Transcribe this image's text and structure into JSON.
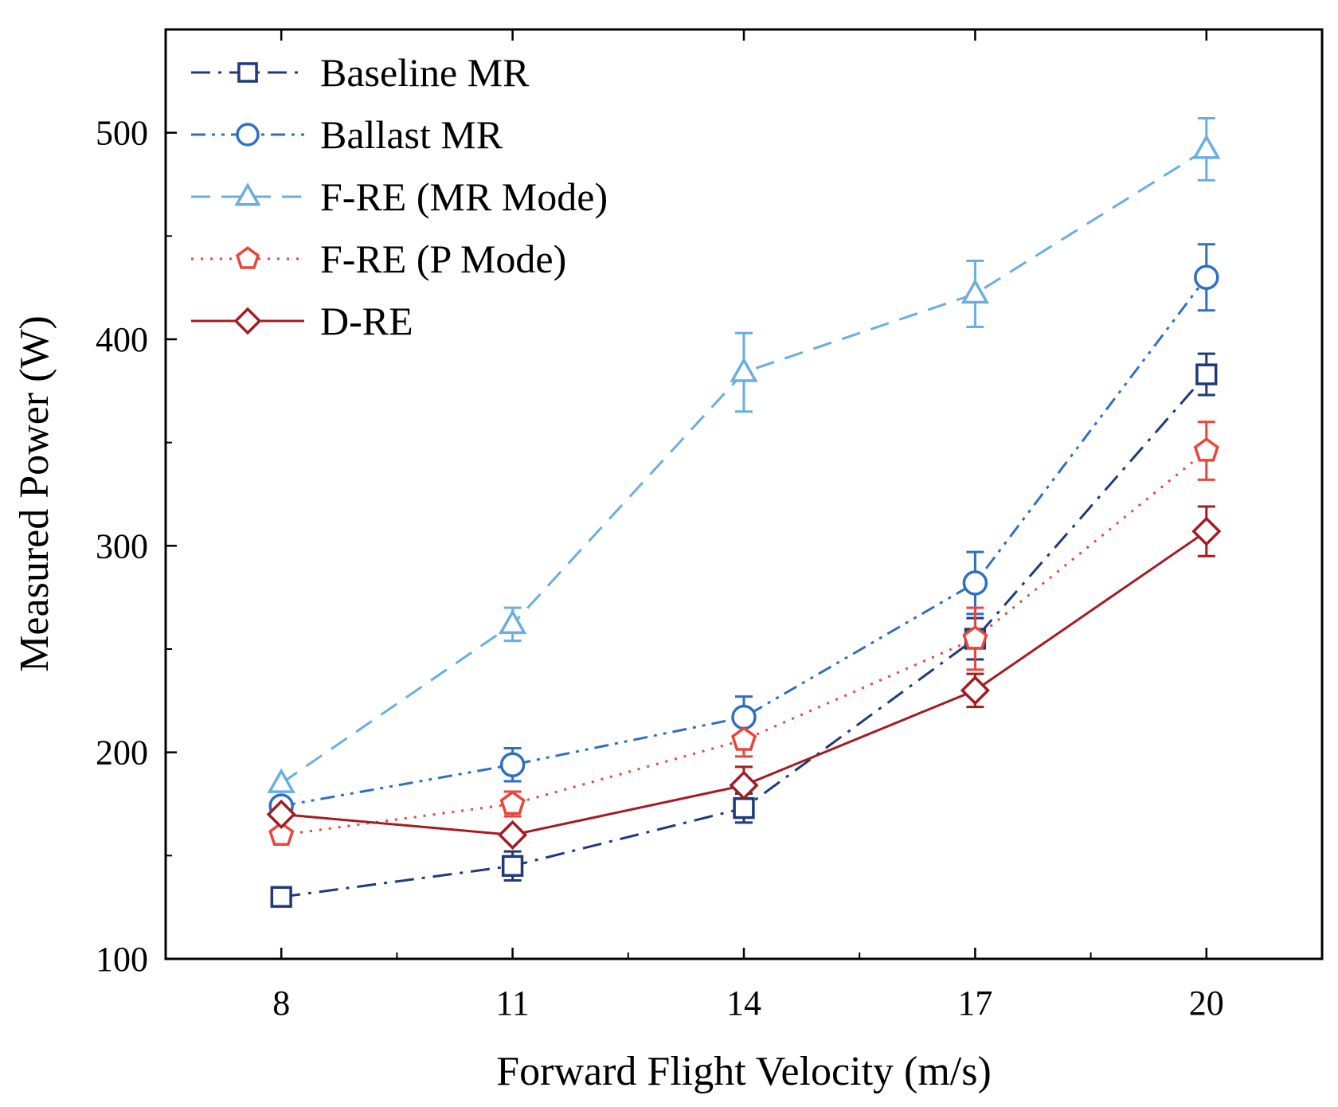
{
  "chart_data": {
    "type": "line",
    "title": "",
    "xlabel": "Forward Flight Velocity (m/s)",
    "ylabel": "Measured Power (W)",
    "x": [
      8,
      11,
      14,
      17,
      20
    ],
    "x_ticks": [
      "8",
      "11",
      "14",
      "17",
      "20"
    ],
    "y_ticks": [
      "100",
      "200",
      "300",
      "400",
      "500"
    ],
    "xlim": [
      6.5,
      21.5
    ],
    "ylim": [
      100,
      550
    ],
    "legend_position": "top-left",
    "series": [
      {
        "name": "Baseline MR",
        "marker": "square",
        "dash": "dashdot",
        "color": "#1f3a7a",
        "values": [
          130,
          145,
          173,
          255,
          383
        ],
        "errors": [
          0,
          7,
          7,
          10,
          10
        ]
      },
      {
        "name": "Ballast MR",
        "marker": "circle",
        "dash": "dashdotdot",
        "color": "#2f6fc0",
        "values": [
          174,
          194,
          217,
          282,
          430
        ],
        "errors": [
          0,
          8,
          10,
          15,
          16
        ]
      },
      {
        "name": "F-RE (MR Mode)",
        "marker": "triangle",
        "dash": "dashed",
        "color": "#6aaee0",
        "values": [
          185,
          262,
          384,
          422,
          492
        ],
        "errors": [
          0,
          8,
          19,
          16,
          15
        ]
      },
      {
        "name": "F-RE (P Mode)",
        "marker": "pentagon",
        "dash": "dotted",
        "color": "#e8463a",
        "values": [
          160,
          175,
          206,
          255,
          346
        ],
        "errors": [
          0,
          6,
          8,
          15,
          14
        ]
      },
      {
        "name": "D-RE",
        "marker": "diamond",
        "dash": "solid",
        "color": "#a31c23",
        "values": [
          170,
          160,
          184,
          230,
          307
        ],
        "errors": [
          0,
          0,
          9,
          8,
          12
        ]
      }
    ]
  }
}
